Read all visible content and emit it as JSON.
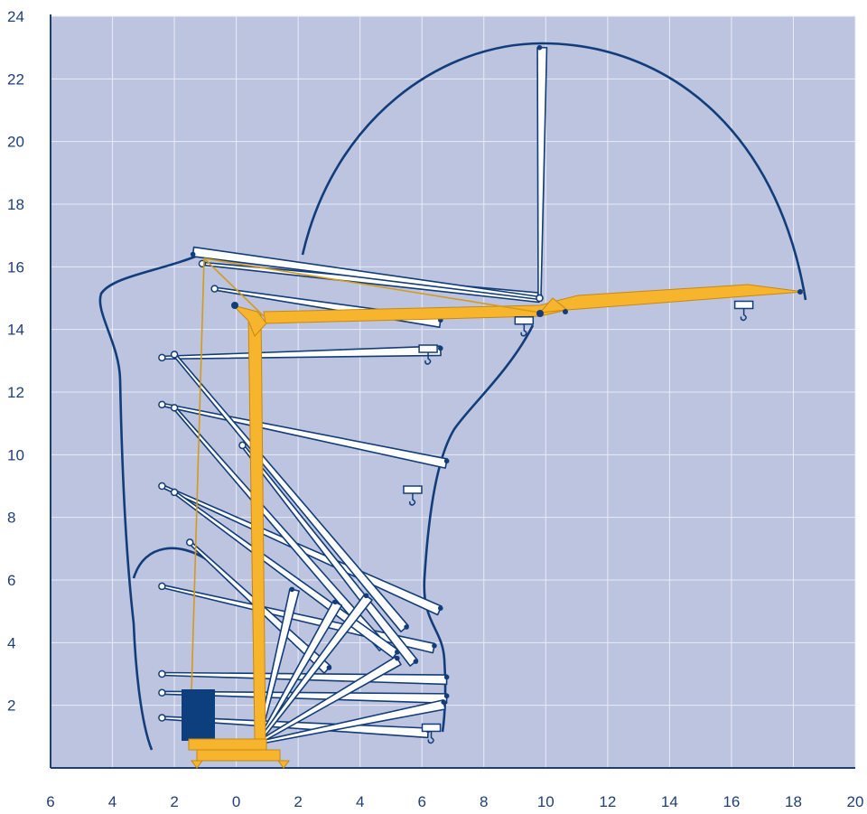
{
  "colors": {
    "plot_bg": "#bcc4e0",
    "grid": "#e9ecf6",
    "axis": "#1b3f7d",
    "outline": "#123d7a",
    "mast": "#f7b52e",
    "mast_edge": "#c88711",
    "counterweight": "#0d3f7f",
    "boom_fill": "#ffffff"
  },
  "axes": {
    "x": {
      "range": [
        -6,
        20
      ],
      "ticks": [
        -6,
        -4,
        -2,
        0,
        2,
        4,
        6,
        8,
        10,
        12,
        14,
        16,
        18,
        20
      ],
      "labels": [
        "6",
        "4",
        "2",
        "0",
        "2",
        "4",
        "6",
        "8",
        "10",
        "12",
        "14",
        "16",
        "18",
        "20"
      ]
    },
    "y": {
      "range": [
        0,
        24
      ],
      "ticks": [
        2,
        4,
        6,
        8,
        10,
        12,
        14,
        16,
        18,
        20,
        22,
        24
      ],
      "labels": [
        "2",
        "4",
        "6",
        "8",
        "10",
        "12",
        "14",
        "16",
        "18",
        "20",
        "22",
        "24"
      ]
    }
  },
  "crane": {
    "mast_height": 14.5,
    "tip_of_reach": 18.2,
    "max_hook_height": 23.1,
    "boom_positions": [
      {
        "pivot": [
          -2.4,
          13.1
        ],
        "tip": [
          6.6,
          13.4
        ]
      },
      {
        "pivot": [
          -2.4,
          11.6
        ],
        "tip": [
          6.8,
          9.8
        ]
      },
      {
        "pivot": [
          -2.4,
          9.0
        ],
        "tip": [
          6.6,
          5.1
        ]
      },
      {
        "pivot": [
          -2.4,
          5.8
        ],
        "tip": [
          6.4,
          3.9
        ]
      },
      {
        "pivot": [
          -2.4,
          3.0
        ],
        "tip": [
          6.8,
          2.9
        ]
      },
      {
        "pivot": [
          -2.4,
          2.4
        ],
        "tip": [
          6.8,
          2.3
        ]
      },
      {
        "pivot": [
          -2.4,
          1.6
        ],
        "tip": [
          6.2,
          1.2
        ]
      },
      {
        "pivot": [
          -2.0,
          13.2
        ],
        "tip": [
          5.5,
          4.5
        ]
      },
      {
        "pivot": [
          -2.0,
          11.5
        ],
        "tip": [
          4.8,
          3.9
        ]
      },
      {
        "pivot": [
          -2.0,
          8.8
        ],
        "tip": [
          5.2,
          3.7
        ]
      },
      {
        "pivot": [
          -1.5,
          7.2
        ],
        "tip": [
          3.0,
          3.2
        ]
      },
      {
        "pivot": [
          0.2,
          10.3
        ],
        "tip": [
          5.8,
          3.4
        ]
      },
      {
        "pivot": [
          -0.7,
          15.3
        ],
        "tip": [
          6.6,
          14.3
        ]
      },
      {
        "pivot": [
          0.7,
          0.8
        ],
        "tip": [
          1.8,
          5.7
        ]
      },
      {
        "pivot": [
          0.7,
          0.8
        ],
        "tip": [
          3.2,
          5.3
        ]
      },
      {
        "pivot": [
          0.7,
          0.8
        ],
        "tip": [
          4.2,
          5.5
        ]
      },
      {
        "pivot": [
          0.7,
          0.8
        ],
        "tip": [
          5.2,
          3.5
        ]
      },
      {
        "pivot": [
          0.7,
          0.8
        ],
        "tip": [
          6.7,
          2.1
        ]
      },
      {
        "pivot": [
          -1.1,
          16.1
        ],
        "tip": [
          9.8,
          15.1
        ]
      },
      {
        "pivot": [
          9.8,
          15.0
        ],
        "tip": [
          9.8,
          23.0
        ]
      },
      {
        "pivot": [
          9.8,
          15.0
        ],
        "tip": [
          -1.4,
          16.4
        ]
      }
    ],
    "hooks": [
      {
        "x": 6.2,
        "y": 13.5
      },
      {
        "x": 5.7,
        "y": 9.0
      },
      {
        "x": 6.3,
        "y": 1.4
      },
      {
        "x": 9.3,
        "y": 14.4
      },
      {
        "x": 16.4,
        "y": 14.9
      }
    ]
  }
}
